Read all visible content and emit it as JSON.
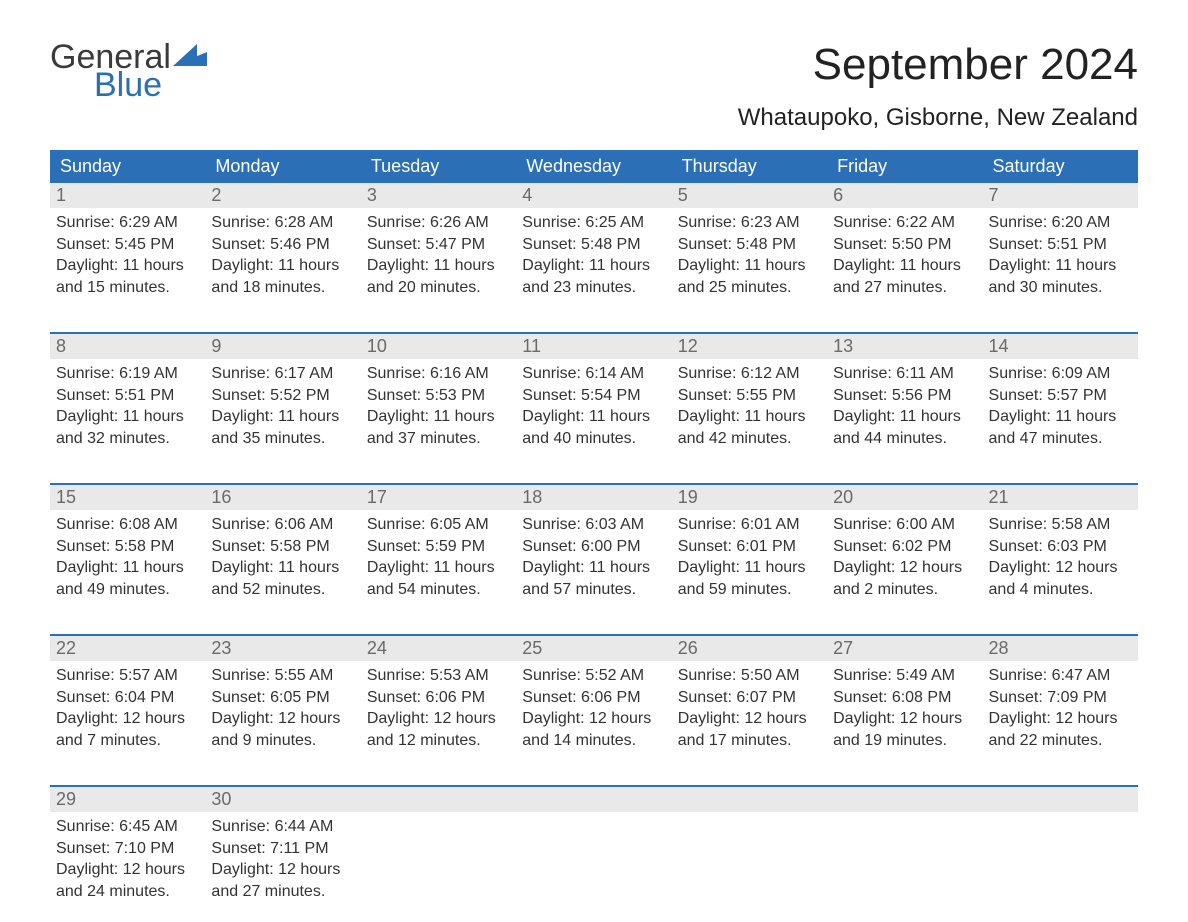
{
  "colors": {
    "brand_blue": "#2b6fb6",
    "header_text": "#ffffff",
    "daynum_bg": "#e9e9e9",
    "daynum_text": "#6a6a6a",
    "body_text": "#333333",
    "logo_gray": "#3a3a3a",
    "page_bg": "#ffffff"
  },
  "typography": {
    "month_title_fontsize": 44,
    "location_fontsize": 24,
    "dow_fontsize": 18,
    "daynum_fontsize": 18,
    "body_fontsize": 16,
    "logo_fontsize": 34
  },
  "logo": {
    "top": "General",
    "bottom": "Blue"
  },
  "title": "September 2024",
  "location": "Whataupoko, Gisborne, New Zealand",
  "days_of_week": [
    "Sunday",
    "Monday",
    "Tuesday",
    "Wednesday",
    "Thursday",
    "Friday",
    "Saturday"
  ],
  "labels": {
    "sunrise": "Sunrise:",
    "sunset": "Sunset:",
    "daylight": "Daylight:"
  },
  "weeks": [
    [
      {
        "num": "1",
        "sunrise": "6:29 AM",
        "sunset": "5:45 PM",
        "daylight_h": "11",
        "daylight_m": "15"
      },
      {
        "num": "2",
        "sunrise": "6:28 AM",
        "sunset": "5:46 PM",
        "daylight_h": "11",
        "daylight_m": "18"
      },
      {
        "num": "3",
        "sunrise": "6:26 AM",
        "sunset": "5:47 PM",
        "daylight_h": "11",
        "daylight_m": "20"
      },
      {
        "num": "4",
        "sunrise": "6:25 AM",
        "sunset": "5:48 PM",
        "daylight_h": "11",
        "daylight_m": "23"
      },
      {
        "num": "5",
        "sunrise": "6:23 AM",
        "sunset": "5:48 PM",
        "daylight_h": "11",
        "daylight_m": "25"
      },
      {
        "num": "6",
        "sunrise": "6:22 AM",
        "sunset": "5:50 PM",
        "daylight_h": "11",
        "daylight_m": "27"
      },
      {
        "num": "7",
        "sunrise": "6:20 AM",
        "sunset": "5:51 PM",
        "daylight_h": "11",
        "daylight_m": "30"
      }
    ],
    [
      {
        "num": "8",
        "sunrise": "6:19 AM",
        "sunset": "5:51 PM",
        "daylight_h": "11",
        "daylight_m": "32"
      },
      {
        "num": "9",
        "sunrise": "6:17 AM",
        "sunset": "5:52 PM",
        "daylight_h": "11",
        "daylight_m": "35"
      },
      {
        "num": "10",
        "sunrise": "6:16 AM",
        "sunset": "5:53 PM",
        "daylight_h": "11",
        "daylight_m": "37"
      },
      {
        "num": "11",
        "sunrise": "6:14 AM",
        "sunset": "5:54 PM",
        "daylight_h": "11",
        "daylight_m": "40"
      },
      {
        "num": "12",
        "sunrise": "6:12 AM",
        "sunset": "5:55 PM",
        "daylight_h": "11",
        "daylight_m": "42"
      },
      {
        "num": "13",
        "sunrise": "6:11 AM",
        "sunset": "5:56 PM",
        "daylight_h": "11",
        "daylight_m": "44"
      },
      {
        "num": "14",
        "sunrise": "6:09 AM",
        "sunset": "5:57 PM",
        "daylight_h": "11",
        "daylight_m": "47"
      }
    ],
    [
      {
        "num": "15",
        "sunrise": "6:08 AM",
        "sunset": "5:58 PM",
        "daylight_h": "11",
        "daylight_m": "49"
      },
      {
        "num": "16",
        "sunrise": "6:06 AM",
        "sunset": "5:58 PM",
        "daylight_h": "11",
        "daylight_m": "52"
      },
      {
        "num": "17",
        "sunrise": "6:05 AM",
        "sunset": "5:59 PM",
        "daylight_h": "11",
        "daylight_m": "54"
      },
      {
        "num": "18",
        "sunrise": "6:03 AM",
        "sunset": "6:00 PM",
        "daylight_h": "11",
        "daylight_m": "57"
      },
      {
        "num": "19",
        "sunrise": "6:01 AM",
        "sunset": "6:01 PM",
        "daylight_h": "11",
        "daylight_m": "59"
      },
      {
        "num": "20",
        "sunrise": "6:00 AM",
        "sunset": "6:02 PM",
        "daylight_h": "12",
        "daylight_m": "2"
      },
      {
        "num": "21",
        "sunrise": "5:58 AM",
        "sunset": "6:03 PM",
        "daylight_h": "12",
        "daylight_m": "4"
      }
    ],
    [
      {
        "num": "22",
        "sunrise": "5:57 AM",
        "sunset": "6:04 PM",
        "daylight_h": "12",
        "daylight_m": "7"
      },
      {
        "num": "23",
        "sunrise": "5:55 AM",
        "sunset": "6:05 PM",
        "daylight_h": "12",
        "daylight_m": "9"
      },
      {
        "num": "24",
        "sunrise": "5:53 AM",
        "sunset": "6:06 PM",
        "daylight_h": "12",
        "daylight_m": "12"
      },
      {
        "num": "25",
        "sunrise": "5:52 AM",
        "sunset": "6:06 PM",
        "daylight_h": "12",
        "daylight_m": "14"
      },
      {
        "num": "26",
        "sunrise": "5:50 AM",
        "sunset": "6:07 PM",
        "daylight_h": "12",
        "daylight_m": "17"
      },
      {
        "num": "27",
        "sunrise": "5:49 AM",
        "sunset": "6:08 PM",
        "daylight_h": "12",
        "daylight_m": "19"
      },
      {
        "num": "28",
        "sunrise": "6:47 AM",
        "sunset": "7:09 PM",
        "daylight_h": "12",
        "daylight_m": "22"
      }
    ],
    [
      {
        "num": "29",
        "sunrise": "6:45 AM",
        "sunset": "7:10 PM",
        "daylight_h": "12",
        "daylight_m": "24"
      },
      {
        "num": "30",
        "sunrise": "6:44 AM",
        "sunset": "7:11 PM",
        "daylight_h": "12",
        "daylight_m": "27"
      },
      {
        "empty": true
      },
      {
        "empty": true
      },
      {
        "empty": true
      },
      {
        "empty": true
      },
      {
        "empty": true
      }
    ]
  ]
}
